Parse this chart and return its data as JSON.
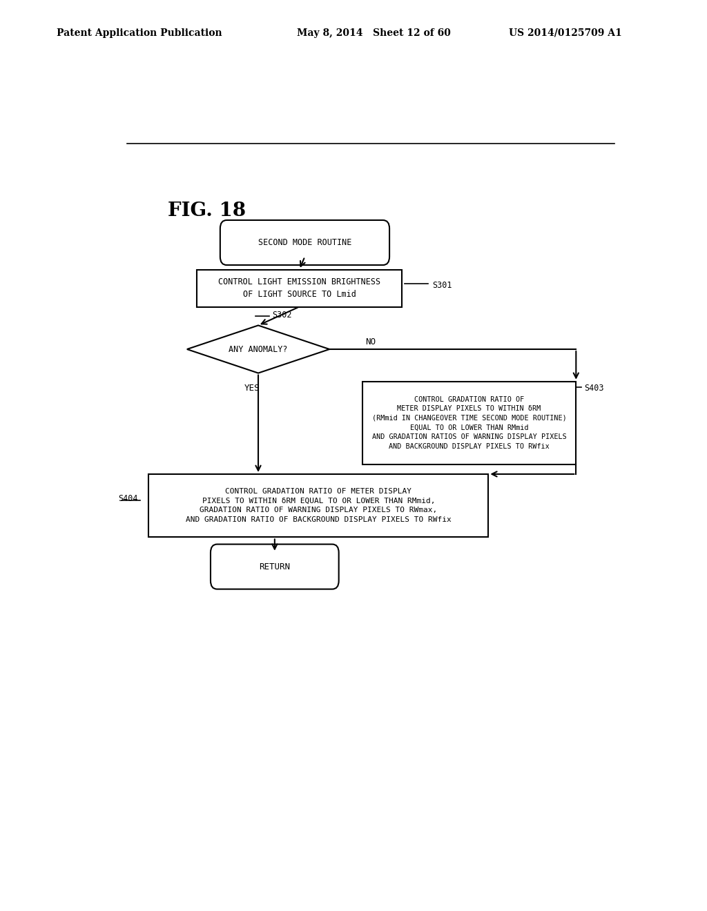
{
  "title": "FIG. 18",
  "header_left": "Patent Application Publication",
  "header_center": "May 8, 2014   Sheet 12 of 60",
  "header_right": "US 2014/0125709 A1",
  "bg_color": "#ffffff",
  "text_color": "#000000",
  "start_label": "SECOND MODE ROUTINE",
  "s301_label": "CONTROL LIGHT EMISSION BRIGHTNESS\nOF LIGHT SOURCE TO Lmid",
  "s301_step": "S301",
  "s302_label": "ANY ANOMALY?",
  "s302_step": "S302",
  "no_label": "NO",
  "yes_label": "YES",
  "s403_label": "CONTROL GRADATION RATIO OF\nMETER DISPLAY PIXELS TO WITHIN δRM\n(RMmid IN CHANGEOVER TIME SECOND MODE ROUTINE)\nEQUAL TO OR LOWER THAN RMmid\nAND GRADATION RATIOS OF WARNING DISPLAY PIXELS\nAND BACKGROUND DISPLAY PIXELS TO RWfix",
  "s403_step": "S403",
  "s404_label": "CONTROL GRADATION RATIO OF METER DISPLAY\nPIXELS TO WITHIN δRM EQUAL TO OR LOWER THAN RMmid,\nGRADATION RATIO OF WARNING DISPLAY PIXELS TO RWmax,\nAND GRADATION RATIO OF BACKGROUND DISPLAY PIXELS TO RWfix",
  "s404_step": "S404",
  "return_label": "RETURN"
}
